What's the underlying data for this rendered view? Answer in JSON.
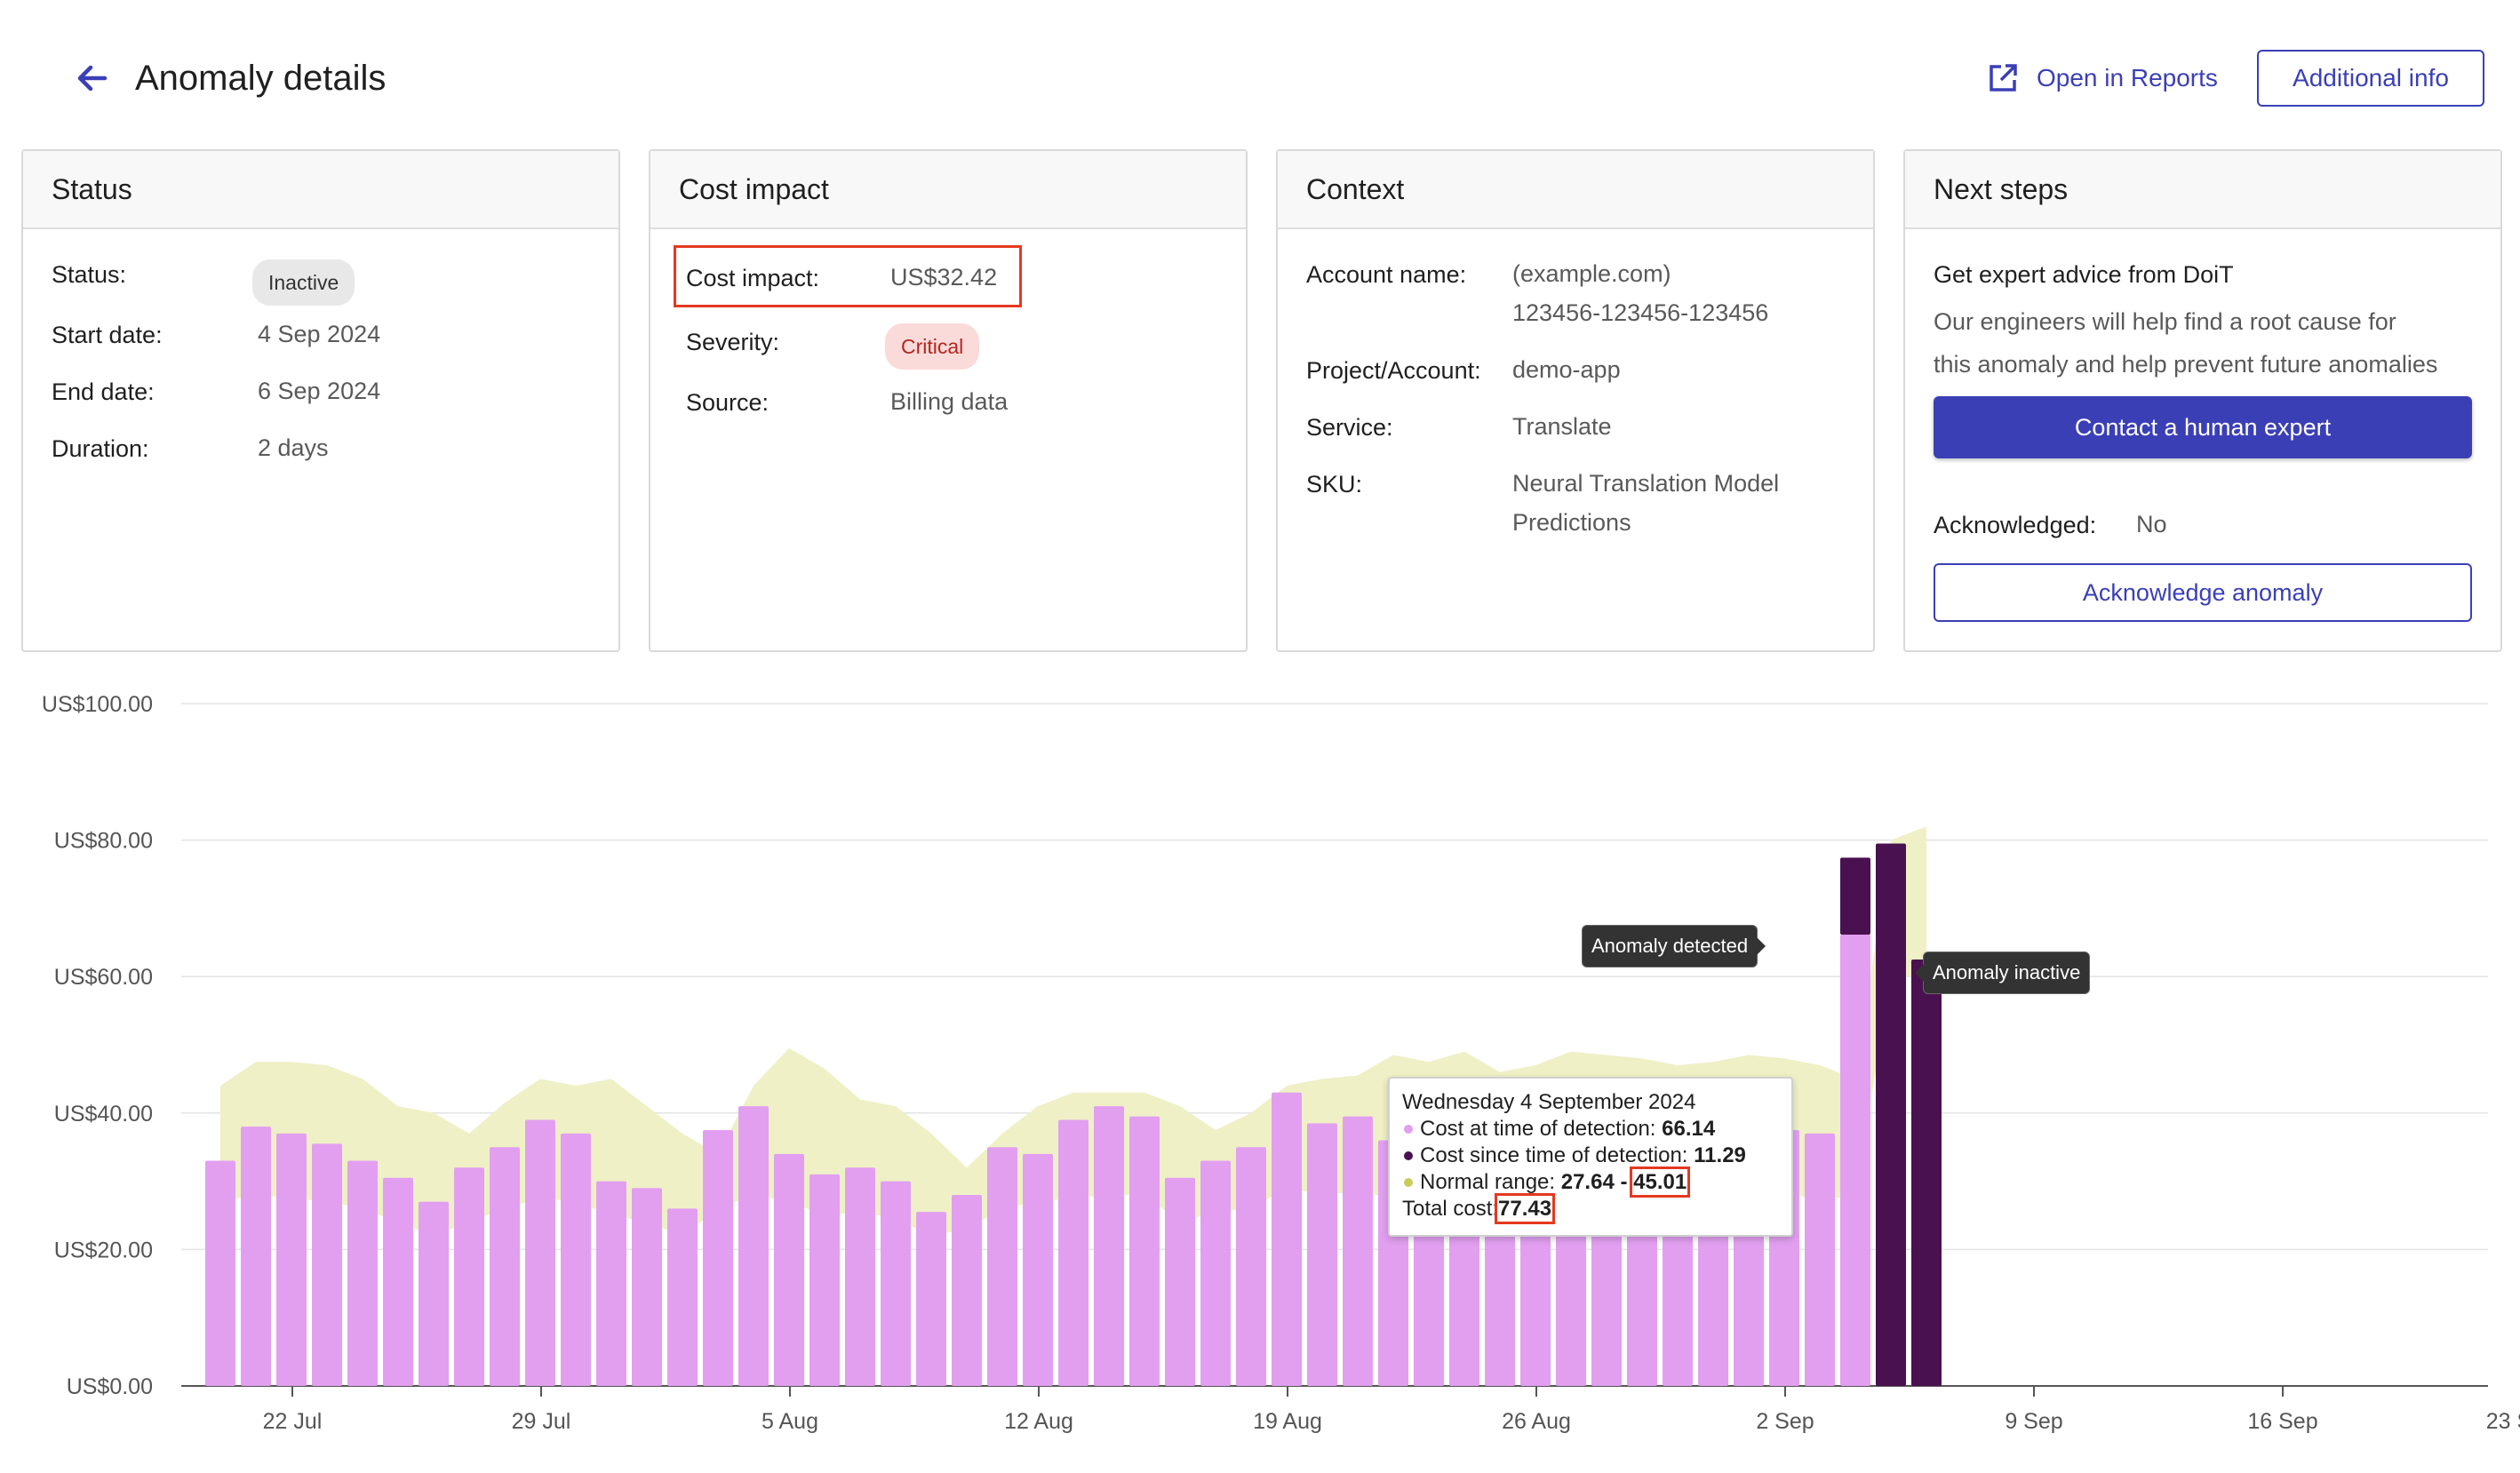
{
  "header": {
    "title": "Anomaly details",
    "open_reports_label": "Open in Reports",
    "additional_info_label": "Additional info"
  },
  "cards": {
    "status": {
      "title": "Status",
      "status_label": "Status:",
      "status_value": "Inactive",
      "start_label": "Start date:",
      "start_value": "4 Sep 2024",
      "end_label": "End date:",
      "end_value": "6 Sep 2024",
      "duration_label": "Duration:",
      "duration_value": "2 days"
    },
    "cost": {
      "title": "Cost impact",
      "impact_label": "Cost impact:",
      "impact_value": "US$32.42",
      "severity_label": "Severity:",
      "severity_value": "Critical",
      "source_label": "Source:",
      "source_value": "Billing data"
    },
    "context": {
      "title": "Context",
      "account_label": "Account name:",
      "account_value_1": "(example.com)",
      "account_value_2": "123456-123456-123456",
      "project_label": "Project/Account:",
      "project_value": "demo-app",
      "service_label": "Service:",
      "service_value": "Translate",
      "sku_label": "SKU:",
      "sku_value_1": "Neural Translation Model",
      "sku_value_2": "Predictions"
    },
    "next": {
      "title": "Next steps",
      "heading": "Get expert advice from DoiT",
      "desc_1": "Our engineers will help find a root cause for",
      "desc_2": "this anomaly and help prevent future anomalies",
      "contact_label": "Contact a human expert",
      "ack_label": "Acknowledged:",
      "ack_value": "No",
      "ack_button": "Acknowledge anomaly"
    }
  },
  "annotations": {
    "detected": "Anomaly detected",
    "inactive": "Anomaly inactive"
  },
  "tooltip": {
    "date": "Wednesday 4 September 2024",
    "detect_label": "Cost at time of detection: ",
    "detect_value": "66.14",
    "since_label": "Cost since time of detection: ",
    "since_value": "11.29",
    "range_label": "Normal range: ",
    "range_low": "27.64",
    "range_sep": " - ",
    "range_high": "45.01",
    "total_label": "Total cost:",
    "total_value": "77.43"
  },
  "colors": {
    "accent": "#3b3fb6",
    "bar_normal": "#e29ff0",
    "bar_anomaly": "#4a1150",
    "band": "#eff0c6",
    "highlight": "#e53920"
  },
  "chart_data": {
    "type": "bar",
    "y_ticks": [
      "US$0.00",
      "US$20.00",
      "US$40.00",
      "US$60.00",
      "US$80.00",
      "US$100.00"
    ],
    "x_ticks": [
      "22 Jul",
      "29 Jul",
      "5 Aug",
      "12 Aug",
      "19 Aug",
      "26 Aug",
      "2 Sep",
      "9 Sep",
      "16 Sep",
      "23 Sep"
    ],
    "ylim": [
      0,
      100
    ],
    "grid": true,
    "categories": [
      "20 Jul",
      "21 Jul",
      "22 Jul",
      "23 Jul",
      "24 Jul",
      "25 Jul",
      "26 Jul",
      "27 Jul",
      "28 Jul",
      "29 Jul",
      "30 Jul",
      "31 Jul",
      "1 Aug",
      "2 Aug",
      "3 Aug",
      "4 Aug",
      "5 Aug",
      "6 Aug",
      "7 Aug",
      "8 Aug",
      "9 Aug",
      "10 Aug",
      "11 Aug",
      "12 Aug",
      "13 Aug",
      "14 Aug",
      "15 Aug",
      "16 Aug",
      "17 Aug",
      "18 Aug",
      "19 Aug",
      "20 Aug",
      "21 Aug",
      "22 Aug",
      "23 Aug",
      "24 Aug",
      "25 Aug",
      "26 Aug",
      "27 Aug",
      "28 Aug",
      "29 Aug",
      "30 Aug",
      "31 Aug",
      "1 Sep",
      "2 Sep",
      "3 Sep",
      "4 Sep",
      "5 Sep",
      "6 Sep"
    ],
    "series": [
      {
        "values": [
          33,
          38,
          37,
          35.5,
          33,
          30.5,
          27,
          32,
          35,
          39,
          37,
          30,
          29,
          26,
          37.5,
          41,
          34,
          31,
          32,
          30,
          25.5,
          28,
          35,
          34,
          39,
          41,
          39.5,
          30.5,
          33,
          35,
          43,
          38.5,
          39.5,
          36,
          35.5,
          33,
          34,
          35,
          36,
          37,
          34,
          35,
          36,
          37,
          37.5,
          37,
          66.14,
          0,
          0
        ]
      },
      {
        "values": [
          0,
          0,
          0,
          0,
          0,
          0,
          0,
          0,
          0,
          0,
          0,
          0,
          0,
          0,
          0,
          0,
          0,
          0,
          0,
          0,
          0,
          0,
          0,
          0,
          0,
          0,
          0,
          0,
          0,
          0,
          0,
          0,
          0,
          0,
          0,
          0,
          0,
          0,
          0,
          0,
          0,
          0,
          0,
          0,
          0,
          0,
          11.29,
          79.5,
          62.5
        ]
      }
    ],
    "normal_range": {
      "upper": [
        44,
        47.5,
        47.5,
        47,
        45,
        41,
        40,
        37,
        41.5,
        45,
        44,
        45,
        41,
        37,
        34,
        44,
        49.5,
        46.5,
        42,
        41,
        37,
        32,
        37,
        41,
        43,
        43,
        43,
        41,
        37.5,
        40,
        44,
        45,
        45.5,
        48.5,
        47.5,
        49,
        46,
        47,
        49,
        48.5,
        48,
        47,
        47.5,
        48.5,
        48,
        47,
        45.01,
        80,
        82
      ],
      "lower": [
        27,
        28,
        27.5,
        27,
        26,
        24,
        22,
        24,
        26,
        27.5,
        27,
        25,
        24,
        22,
        26,
        28,
        27,
        25,
        25.5,
        24.5,
        22,
        23,
        26,
        27,
        27.5,
        28,
        28,
        24,
        25.5,
        26,
        29,
        28,
        28.5,
        27.5,
        27,
        26,
        26.5,
        27,
        27.5,
        27.5,
        27,
        27,
        27.5,
        27.5,
        28,
        27.5,
        27.64,
        60,
        60
      ]
    }
  }
}
